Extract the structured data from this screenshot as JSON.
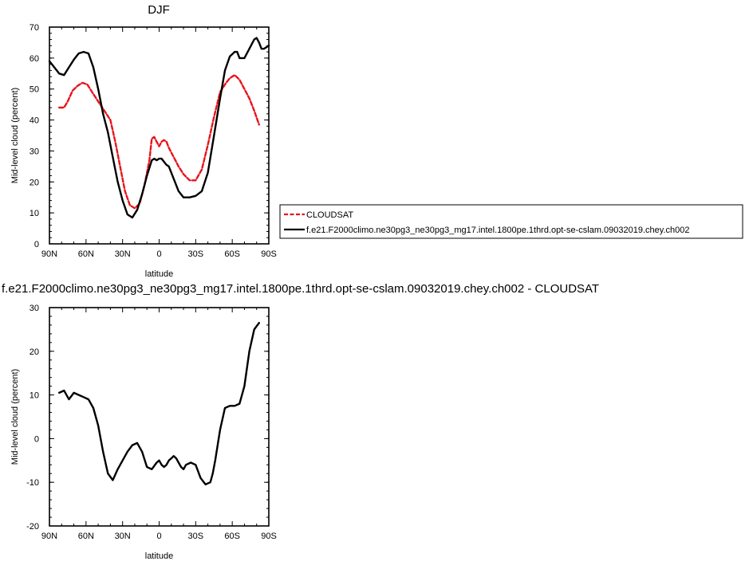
{
  "chart_data": [
    {
      "type": "line",
      "title": "DJF",
      "xlabel": "latitude",
      "ylabel": "Mid-level cloud (percent)",
      "xlim": [
        90,
        -90
      ],
      "ylim": [
        0,
        70
      ],
      "x_ticks": [
        90,
        60,
        30,
        0,
        -30,
        -60,
        -90
      ],
      "x_tick_labels": [
        "90N",
        "60N",
        "30N",
        "0",
        "30S",
        "60S",
        "90S"
      ],
      "y_ticks": [
        0,
        10,
        20,
        30,
        40,
        50,
        60,
        70
      ],
      "y_tick_labels": [
        "0",
        "10",
        "20",
        "30",
        "40",
        "50",
        "60",
        "70"
      ],
      "grid": false,
      "legend_position": "right, outside plot",
      "series": [
        {
          "name": "CLOUDSAT",
          "color": "#e8141c",
          "dash": "dashed",
          "x": [
            82,
            78,
            75,
            71,
            67,
            63,
            59,
            55,
            50,
            45,
            40,
            36,
            32,
            28,
            24,
            20,
            16,
            12,
            8,
            6,
            4,
            2,
            0,
            -2,
            -4,
            -6,
            -8,
            -12,
            -16,
            -20,
            -25,
            -30,
            -35,
            -40,
            -45,
            -50,
            -55,
            -58,
            -62,
            -66,
            -70,
            -74,
            -78,
            -82
          ],
          "y": [
            44,
            44,
            46,
            49.5,
            51,
            52,
            51.5,
            49,
            46,
            43,
            40,
            33,
            25,
            17,
            12.5,
            11.5,
            13,
            19,
            27,
            34,
            34.5,
            33,
            31.5,
            33,
            33.5,
            33,
            31,
            28,
            25,
            22.5,
            20.5,
            20.5,
            24,
            32,
            41,
            49,
            52,
            53.5,
            54.5,
            53,
            50,
            47,
            43,
            38.5
          ]
        },
        {
          "name": "f.e21.F2000climo.ne30pg3_ne30pg3_mg17.intel.1800pe.1thrd.opt-se-cslam.09032019.chey.ch002",
          "color": "#000000",
          "dash": "solid",
          "x": [
            90,
            86,
            82,
            78,
            74,
            70,
            66,
            62,
            58,
            54,
            50,
            46,
            42,
            38,
            34,
            30,
            26,
            22,
            18,
            14,
            10,
            6,
            4,
            2,
            0,
            -2,
            -4,
            -6,
            -8,
            -12,
            -16,
            -20,
            -25,
            -30,
            -35,
            -40,
            -45,
            -50,
            -54,
            -58,
            -62,
            -64,
            -66,
            -70,
            -74,
            -78,
            -80,
            -82,
            -84,
            -86,
            -90
          ],
          "y": [
            59,
            57,
            55,
            54.5,
            57,
            59.5,
            61.5,
            62,
            61.5,
            57,
            50,
            42,
            36,
            28,
            20,
            14,
            9.5,
            8.5,
            11,
            16,
            22,
            27,
            27.5,
            27,
            27.5,
            27.5,
            26.5,
            25.5,
            25,
            21,
            17,
            15,
            15,
            15.5,
            17,
            23,
            35,
            47,
            56,
            60.5,
            62,
            62,
            60,
            60,
            63,
            66,
            66.5,
            65,
            63,
            63,
            64
          ]
        }
      ]
    },
    {
      "type": "line",
      "title": "f.e21.F2000climo.ne30pg3_ne30pg3_mg17.intel.1800pe.1thrd.opt-se-cslam.09032019.chey.ch002 - CLOUDSAT",
      "xlabel": "latitude",
      "ylabel": "Mid-level cloud (percent)",
      "xlim": [
        90,
        -90
      ],
      "ylim": [
        -20,
        30
      ],
      "x_ticks": [
        90,
        60,
        30,
        0,
        -30,
        -60,
        -90
      ],
      "x_tick_labels": [
        "90N",
        "60N",
        "30N",
        "0",
        "30S",
        "60S",
        "90S"
      ],
      "y_ticks": [
        -20,
        -10,
        0,
        10,
        20,
        30
      ],
      "y_tick_labels": [
        "-20",
        "-10",
        "0",
        "10",
        "20",
        "30"
      ],
      "grid": false,
      "series": [
        {
          "color": "#000000",
          "dash": "solid",
          "x": [
            82,
            78,
            74,
            70,
            66,
            62,
            58,
            54,
            50,
            46,
            42,
            38,
            34,
            30,
            26,
            22,
            18,
            14,
            10,
            6,
            2,
            0,
            -2,
            -4,
            -6,
            -8,
            -10,
            -12,
            -14,
            -16,
            -18,
            -20,
            -22,
            -26,
            -30,
            -34,
            -38,
            -42,
            -44,
            -46,
            -50,
            -54,
            -58,
            -62,
            -66,
            -70,
            -74,
            -78,
            -82
          ],
          "y": [
            10.5,
            11,
            9,
            10.5,
            10,
            9.5,
            9,
            7,
            3,
            -3,
            -8,
            -9.5,
            -7,
            -5,
            -3,
            -1.5,
            -1,
            -3,
            -6.5,
            -7,
            -5.5,
            -5,
            -6,
            -6.5,
            -6,
            -5,
            -4.5,
            -4,
            -4.5,
            -5.5,
            -6.5,
            -7,
            -6,
            -5.5,
            -6,
            -9,
            -10.5,
            -10,
            -8,
            -5,
            2,
            7,
            7.5,
            7.5,
            8,
            12,
            20,
            25,
            26.5
          ]
        }
      ]
    }
  ]
}
